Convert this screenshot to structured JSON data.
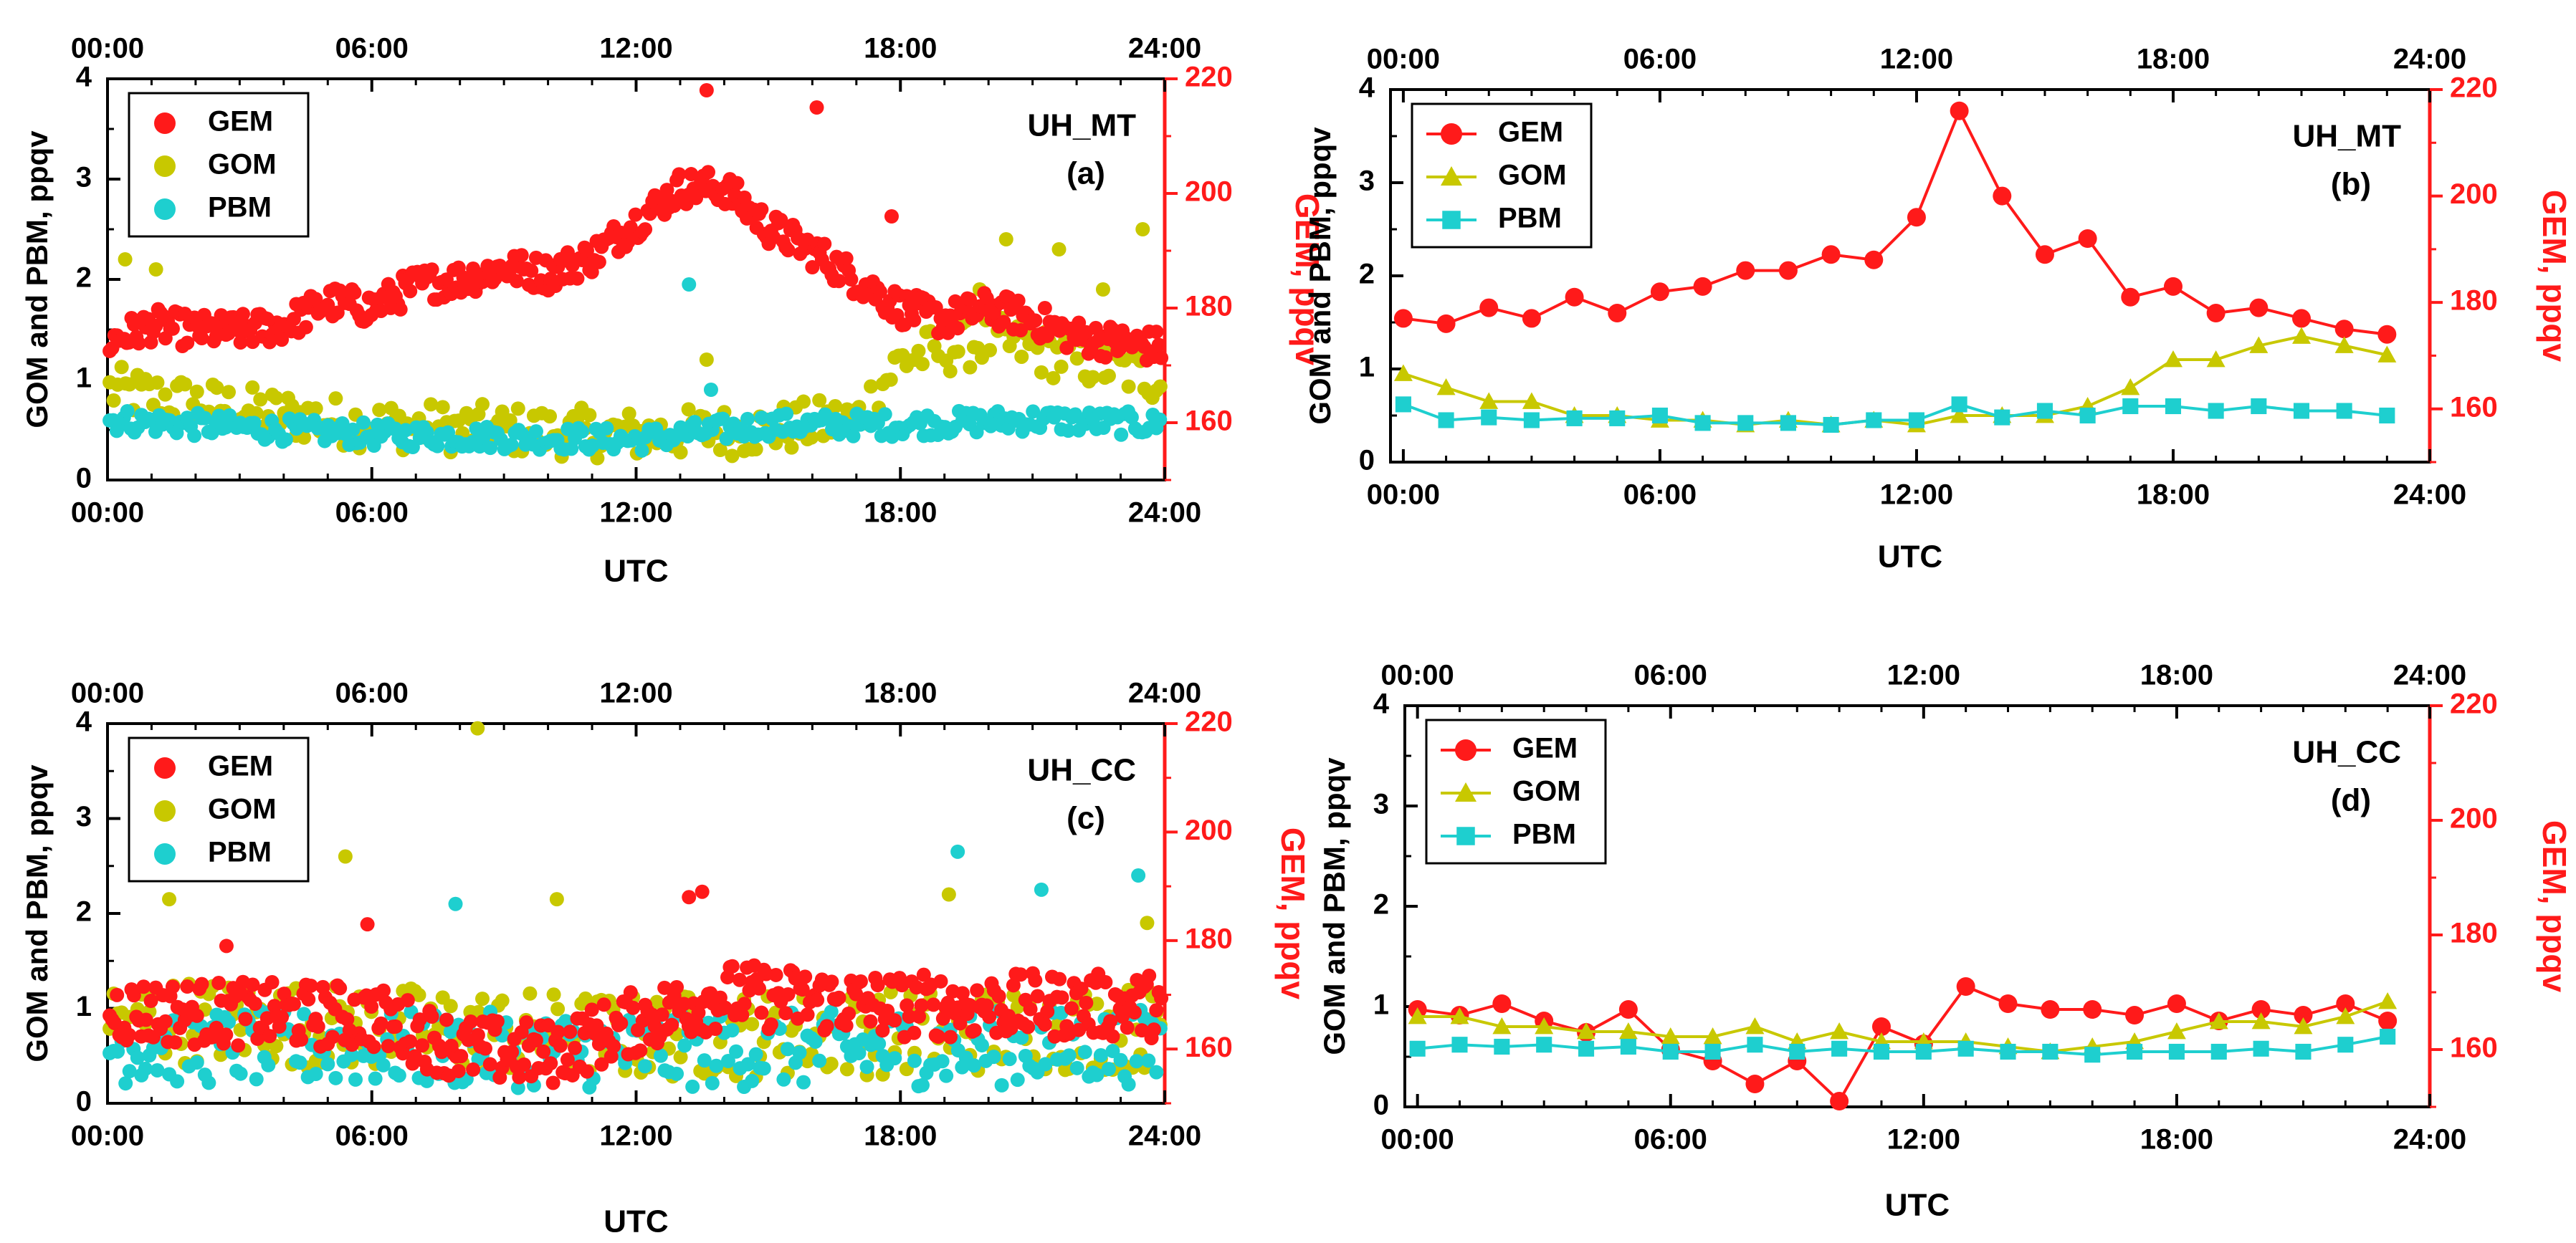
{
  "figure": {
    "description_free": true
  },
  "colors": {
    "gem": "#ff1a1a",
    "gom": "#c8c800",
    "pbm": "#1ecfcf",
    "gem_axis": "#ff1a1a",
    "axis": "#000000"
  },
  "chart_data": [
    {
      "id": "a",
      "type": "scatter",
      "station": "UH_MT",
      "panel_label": "(a)",
      "xlabel": "UTC",
      "ylabel_left": "GOM and PBM, ppqv",
      "ylabel_right": "GEM, ppqv",
      "x_ticks": [
        "00:00",
        "06:00",
        "12:00",
        "18:00",
        "24:00"
      ],
      "xlim": [
        0,
        24
      ],
      "ylim_left": [
        0,
        4
      ],
      "ylim_right": [
        150,
        220
      ],
      "y_ticks_left": [
        "0",
        "1",
        "2",
        "3",
        "4"
      ],
      "y_ticks_right": [
        "160",
        "180",
        "200",
        "220"
      ],
      "legend": [
        "GEM",
        "GOM",
        "PBM"
      ],
      "marker": "circle",
      "series": [
        {
          "name": "GEM",
          "axis": "right",
          "profile": [
            [
              0,
              174
            ],
            [
              1,
              177
            ],
            [
              2,
              176
            ],
            [
              3,
              176
            ],
            [
              4,
              177
            ],
            [
              5,
              181
            ],
            [
              6,
              180
            ],
            [
              7,
              184
            ],
            [
              8,
              185
            ],
            [
              9,
              187
            ],
            [
              10,
              186
            ],
            [
              11,
              189
            ],
            [
              12,
              195
            ],
            [
              13,
              201
            ],
            [
              14,
              201
            ],
            [
              15,
              194
            ],
            [
              16,
              190
            ],
            [
              17,
              185
            ],
            [
              18,
              180
            ],
            [
              19,
              178
            ],
            [
              20,
              180
            ],
            [
              21,
              178
            ],
            [
              22,
              175
            ],
            [
              23,
              174
            ],
            [
              24,
              173
            ]
          ],
          "noise": 3,
          "step": 0.055,
          "outliers": [
            [
              13.6,
              218
            ],
            [
              16.1,
              215
            ],
            [
              17.8,
              196
            ]
          ]
        },
        {
          "name": "GOM",
          "axis": "left",
          "profile": [
            [
              0,
              0.9
            ],
            [
              3,
              0.7
            ],
            [
              6,
              0.55
            ],
            [
              9,
              0.5
            ],
            [
              12,
              0.45
            ],
            [
              15,
              0.5
            ],
            [
              17,
              0.6
            ],
            [
              18,
              1.2
            ],
            [
              19,
              1.3
            ],
            [
              20,
              1.4
            ],
            [
              21,
              1.3
            ],
            [
              22,
              1.2
            ],
            [
              24,
              1.0
            ]
          ],
          "noise": 0.25,
          "step": 0.09,
          "outliers": [
            [
              0.4,
              2.2
            ],
            [
              1.1,
              2.1
            ],
            [
              13.6,
              1.2
            ],
            [
              20.4,
              2.4
            ],
            [
              21.6,
              2.3
            ],
            [
              23.5,
              2.5
            ],
            [
              19.8,
              1.9
            ],
            [
              22.6,
              1.9
            ]
          ]
        },
        {
          "name": "PBM",
          "axis": "left",
          "profile": [
            [
              0,
              0.6
            ],
            [
              6,
              0.45
            ],
            [
              12,
              0.4
            ],
            [
              15,
              0.55
            ],
            [
              18,
              0.55
            ],
            [
              21,
              0.6
            ],
            [
              24,
              0.55
            ]
          ],
          "noise": 0.12,
          "step": 0.08,
          "outliers": [
            [
              13.2,
              1.95
            ],
            [
              13.7,
              0.9
            ]
          ]
        }
      ]
    },
    {
      "id": "b",
      "type": "line",
      "station": "UH_MT",
      "panel_label": "(b)",
      "xlabel": "UTC",
      "ylabel_left": "GOM and PBM, ppqv",
      "ylabel_right": "GEM, ppqv",
      "x_ticks": [
        "00:00",
        "06:00",
        "12:00",
        "18:00",
        "24:00"
      ],
      "xlim": [
        -0.3,
        24
      ],
      "ylim_left": [
        0,
        4
      ],
      "ylim_right": [
        150,
        220
      ],
      "y_ticks_left": [
        "0",
        "1",
        "2",
        "3",
        "4"
      ],
      "y_ticks_right": [
        "160",
        "180",
        "200",
        "220"
      ],
      "legend": [
        "GEM",
        "GOM",
        "PBM"
      ],
      "x": [
        0,
        1,
        2,
        3,
        4,
        5,
        6,
        7,
        8,
        9,
        10,
        11,
        12,
        13,
        14,
        15,
        16,
        17,
        18,
        19,
        20,
        21,
        22,
        23
      ],
      "series": [
        {
          "name": "GEM",
          "axis": "right",
          "marker": "circle",
          "values": [
            177,
            176,
            179,
            177,
            181,
            178,
            182,
            183,
            186,
            186,
            189,
            188,
            196,
            216,
            200,
            189,
            192,
            181,
            183,
            178,
            179,
            177,
            175,
            174
          ]
        },
        {
          "name": "GOM",
          "axis": "left",
          "marker": "triangle",
          "values": [
            0.95,
            0.8,
            0.65,
            0.65,
            0.5,
            0.5,
            0.45,
            0.45,
            0.4,
            0.45,
            0.4,
            0.45,
            0.4,
            0.5,
            0.5,
            0.5,
            0.6,
            0.8,
            1.1,
            1.1,
            1.25,
            1.35,
            1.25,
            1.15
          ]
        },
        {
          "name": "PBM",
          "axis": "left",
          "marker": "square",
          "values": [
            0.62,
            0.45,
            0.48,
            0.45,
            0.47,
            0.47,
            0.5,
            0.42,
            0.42,
            0.42,
            0.4,
            0.45,
            0.45,
            0.62,
            0.48,
            0.55,
            0.5,
            0.6,
            0.6,
            0.55,
            0.6,
            0.55,
            0.55,
            0.5
          ]
        }
      ]
    },
    {
      "id": "c",
      "type": "scatter",
      "station": "UH_CC",
      "panel_label": "(c)",
      "xlabel": "UTC",
      "ylabel_left": "GOM and PBM, ppqv",
      "ylabel_right": "GEM, ppqv",
      "x_ticks": [
        "00:00",
        "06:00",
        "12:00",
        "18:00",
        "24:00"
      ],
      "xlim": [
        0,
        24
      ],
      "ylim_left": [
        0,
        4
      ],
      "ylim_right": [
        150,
        220
      ],
      "y_ticks_left": [
        "0",
        "1",
        "2",
        "3",
        "4"
      ],
      "y_ticks_right": [
        "160",
        "180",
        "200",
        "220"
      ],
      "legend": [
        "GEM",
        "GOM",
        "PBM"
      ],
      "marker": "circle",
      "series": [
        {
          "name": "GEM",
          "axis": "right",
          "profile": [
            [
              0,
              167
            ],
            [
              6,
              166
            ],
            [
              8,
              160
            ],
            [
              10,
              159
            ],
            [
              12,
              165
            ],
            [
              14,
              170
            ],
            [
              18,
              168
            ],
            [
              24,
              168
            ]
          ],
          "noise": 6,
          "step": 0.055,
          "outliers": [
            [
              13.2,
              188
            ],
            [
              13.5,
              189
            ],
            [
              5.9,
              183
            ],
            [
              2.7,
              179
            ]
          ]
        },
        {
          "name": "GOM",
          "axis": "left",
          "profile": [
            [
              0,
              0.9
            ],
            [
              12,
              0.7
            ],
            [
              24,
              0.8
            ]
          ],
          "noise": 0.45,
          "step": 0.09,
          "outliers": [
            [
              8.4,
              3.95
            ],
            [
              5.4,
              2.6
            ],
            [
              1.4,
              2.15
            ],
            [
              19.1,
              2.2
            ],
            [
              23.6,
              1.9
            ],
            [
              10.2,
              2.15
            ]
          ]
        },
        {
          "name": "PBM",
          "axis": "left",
          "profile": [
            [
              0,
              0.6
            ],
            [
              12,
              0.55
            ],
            [
              24,
              0.6
            ]
          ],
          "noise": 0.4,
          "step": 0.09,
          "outliers": [
            [
              19.3,
              2.65
            ],
            [
              23.4,
              2.4
            ],
            [
              21.2,
              2.25
            ],
            [
              7.9,
              2.1
            ]
          ]
        }
      ]
    },
    {
      "id": "d",
      "type": "line",
      "station": "UH_CC",
      "panel_label": "(d)",
      "xlabel": "UTC",
      "ylabel_left": "GOM and PBM, ppqv",
      "ylabel_right": "GEM, ppqv",
      "x_ticks": [
        "00:00",
        "06:00",
        "12:00",
        "18:00",
        "24:00"
      ],
      "xlim": [
        -0.3,
        24
      ],
      "ylim_left": [
        0,
        4
      ],
      "ylim_right": [
        150,
        220
      ],
      "y_ticks_left": [
        "0",
        "1",
        "2",
        "3",
        "4"
      ],
      "y_ticks_right": [
        "160",
        "180",
        "200",
        "220"
      ],
      "legend": [
        "GEM",
        "GOM",
        "PBM"
      ],
      "x": [
        0,
        1,
        2,
        3,
        4,
        5,
        6,
        7,
        8,
        9,
        10,
        11,
        12,
        13,
        14,
        15,
        16,
        17,
        18,
        19,
        20,
        21,
        22,
        23
      ],
      "series": [
        {
          "name": "GEM",
          "axis": "right",
          "marker": "circle",
          "values": [
            167,
            166,
            168,
            165,
            163,
            167,
            160,
            158,
            154,
            158,
            151,
            164,
            161,
            171,
            168,
            167,
            167,
            166,
            168,
            165,
            167,
            166,
            168,
            165
          ]
        },
        {
          "name": "GOM",
          "axis": "left",
          "marker": "triangle",
          "values": [
            0.9,
            0.9,
            0.8,
            0.8,
            0.75,
            0.75,
            0.7,
            0.7,
            0.8,
            0.65,
            0.75,
            0.65,
            0.65,
            0.65,
            0.6,
            0.55,
            0.6,
            0.65,
            0.75,
            0.85,
            0.85,
            0.8,
            0.9,
            1.05
          ]
        },
        {
          "name": "PBM",
          "axis": "left",
          "marker": "square",
          "values": [
            0.58,
            0.62,
            0.6,
            0.62,
            0.58,
            0.6,
            0.55,
            0.55,
            0.62,
            0.55,
            0.58,
            0.55,
            0.55,
            0.58,
            0.55,
            0.55,
            0.52,
            0.55,
            0.55,
            0.55,
            0.58,
            0.55,
            0.62,
            0.7
          ]
        }
      ]
    }
  ]
}
